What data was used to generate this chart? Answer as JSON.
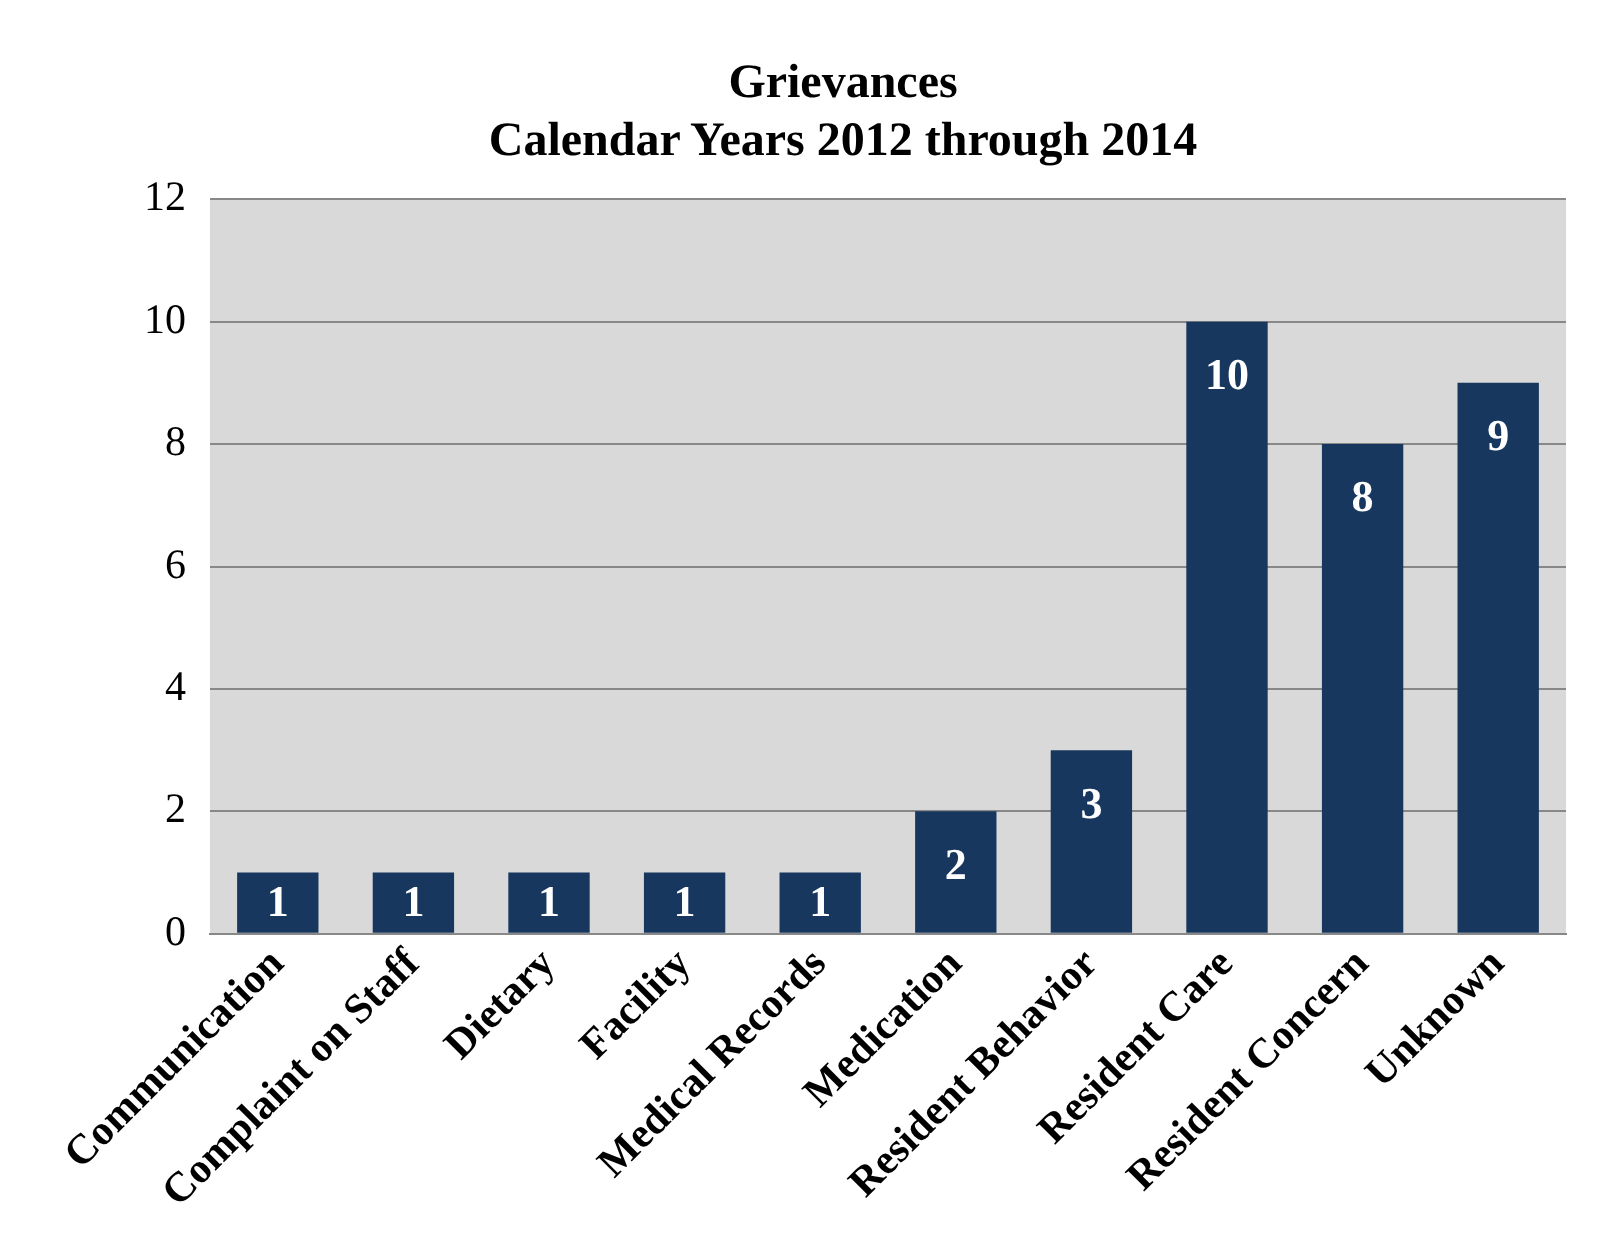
{
  "chart_data": {
    "type": "bar",
    "title": "Grievances\nCalendar Years 2012 through 2014",
    "categories": [
      "Communication",
      "Complaint on Staff",
      "Dietary",
      "Facility",
      "Medical Records",
      "Medication",
      "Resident Behavior",
      "Resident Care",
      "Resident Concern",
      "Unknown"
    ],
    "values": [
      1,
      1,
      1,
      1,
      1,
      2,
      3,
      10,
      8,
      9
    ],
    "color": "#17375e",
    "ylim": [
      0,
      12
    ],
    "yticks": [
      0,
      2,
      4,
      6,
      8,
      10,
      12
    ],
    "grid": "y",
    "data_labels": true,
    "legend": false
  }
}
